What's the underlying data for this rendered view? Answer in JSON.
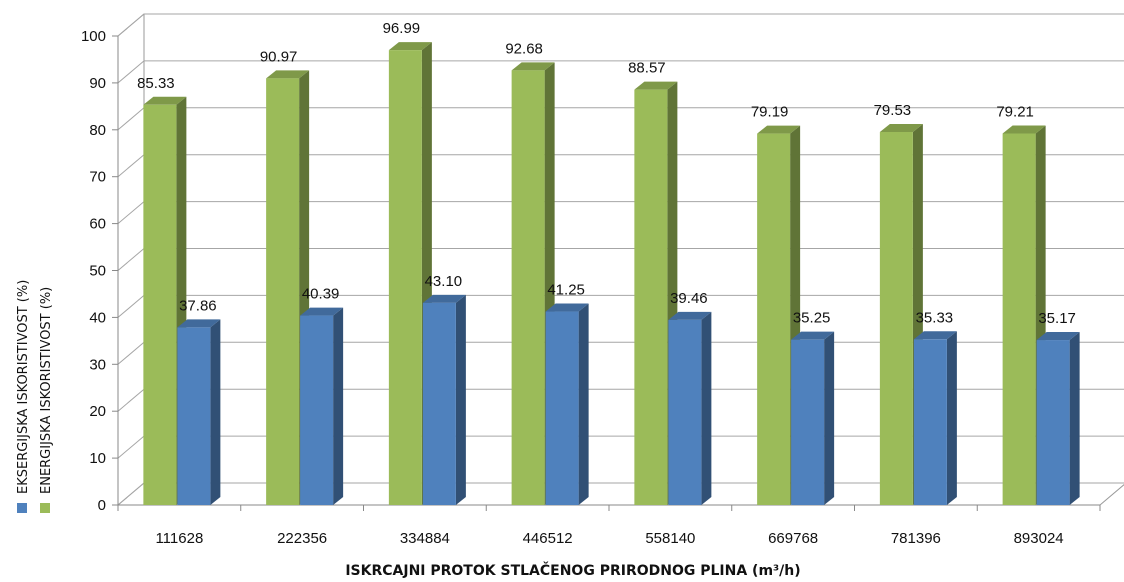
{
  "chart_data": {
    "type": "bar",
    "categories": [
      "111628",
      "222356",
      "334884",
      "446512",
      "558140",
      "669768",
      "781396",
      "893024"
    ],
    "series": [
      {
        "name": "ENERGIJSKA ISKORISTIVOST (%)",
        "color": "#9bbb59",
        "values": [
          85.33,
          90.97,
          96.99,
          92.68,
          88.57,
          79.19,
          79.53,
          79.21
        ],
        "labels": [
          "85.33",
          "90.97",
          "96.99",
          "92.68",
          "88.57",
          "79.19",
          "79.53",
          "79.21"
        ]
      },
      {
        "name": "EKSERGIJSKA ISKORISTIVOST (%)",
        "color": "#4f81bd",
        "values": [
          37.86,
          40.39,
          43.1,
          41.25,
          39.46,
          35.25,
          35.33,
          35.17
        ],
        "labels": [
          "37.86",
          "40.39",
          "43.10",
          "41.25",
          "39.46",
          "35.25",
          "35.33",
          "35.17"
        ]
      }
    ],
    "xlabel": "ISKRCAJNI  PROTOK STLAČENOG  PRIRODNOG  PLINA (m³/h)",
    "ylabel": "",
    "ylim": [
      0,
      100
    ],
    "yticks": [
      "0",
      "10",
      "20",
      "30",
      "40",
      "50",
      "60",
      "70",
      "80",
      "90",
      "100"
    ],
    "grid": true,
    "legend_position": "left-vertical",
    "three_d": true
  }
}
